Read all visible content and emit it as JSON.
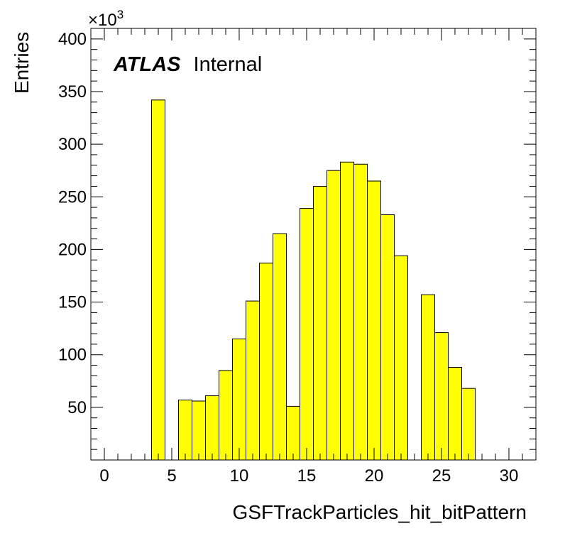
{
  "chart_data": {
    "type": "bar",
    "histogram": true,
    "title": "",
    "xlabel": "GSFTrackParticles_hit_bitPattern",
    "ylabel": "Entries",
    "y_multiplier_label": "×10",
    "y_multiplier_exp": "3",
    "annotation": {
      "bold": "ATLAS",
      "normal": "Internal"
    },
    "xlim": [
      -1,
      32
    ],
    "ylim": [
      0,
      410
    ],
    "x_ticks": [
      0,
      5,
      10,
      15,
      20,
      25,
      30
    ],
    "y_ticks": [
      50,
      100,
      150,
      200,
      250,
      300,
      350,
      400
    ],
    "bin_width": 1,
    "bins_x": [
      4,
      5,
      6,
      7,
      8,
      9,
      10,
      11,
      12,
      13,
      14,
      15,
      16,
      17,
      18,
      19,
      20,
      21,
      22,
      23,
      24,
      25,
      26,
      27,
      28,
      29,
      30,
      31
    ],
    "values": [
      342,
      0,
      57,
      56,
      61,
      85,
      115,
      151,
      187,
      215,
      51,
      239,
      260,
      275,
      283,
      281,
      265,
      233,
      194,
      0,
      157,
      121,
      88,
      68,
      0,
      0,
      0,
      0
    ],
    "fill_color": "#ffff00",
    "edge_color": "#000000"
  }
}
